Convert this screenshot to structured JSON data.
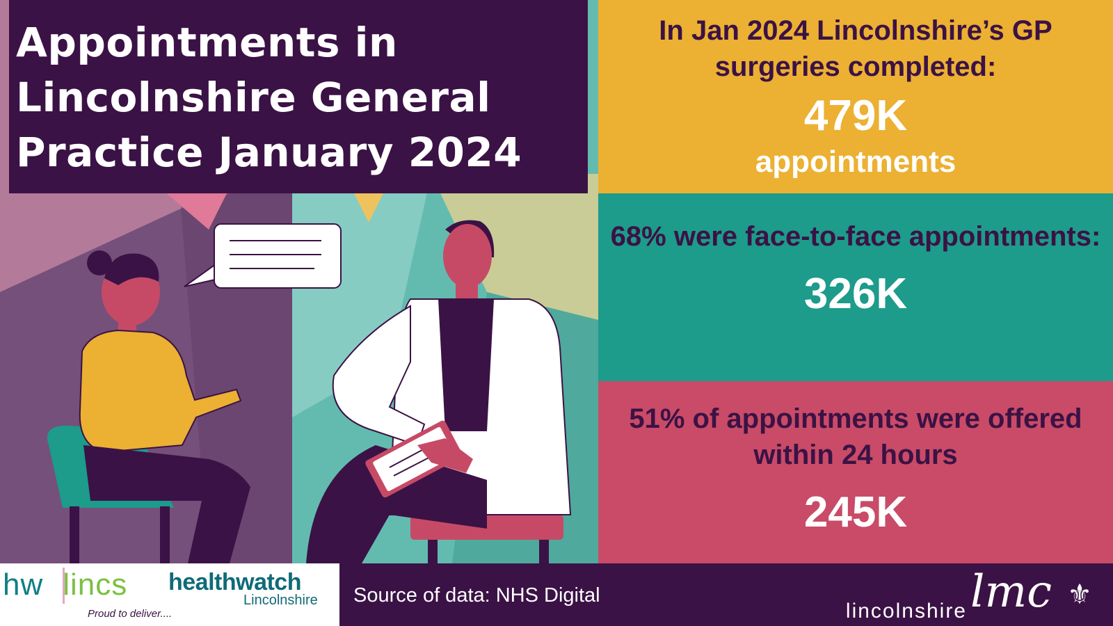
{
  "title": "Appointments in Lincolnshire General Practice January 2024",
  "panels": {
    "total": {
      "label": "In Jan 2024 Lincolnshire’s GP surgeries completed:",
      "value": "479K",
      "sub": "appointments"
    },
    "face_to_face": {
      "label": "68% were face-to-face appointments:",
      "value": "326K"
    },
    "within_24h": {
      "label": "51% of appointments were offered within 24 hours",
      "value": "245K"
    }
  },
  "footer": {
    "hw_logo": {
      "hw": "hw",
      "lincs": "lincs",
      "tagline": "Proud to deliver...."
    },
    "healthwatch_logo": {
      "name": "healthwatch",
      "region": "Lincolnshire"
    },
    "source": "Source of data: NHS Digital",
    "lmc_logo": {
      "prefix": "lincolnshire",
      "script": "lmc",
      "icon": "fleur-de-lis-icon"
    }
  },
  "colors": {
    "purple": "#3b1245",
    "yellow": "#ecb032",
    "teal": "#1d9b8b",
    "pink": "#c94b67",
    "white": "#ffffff"
  }
}
